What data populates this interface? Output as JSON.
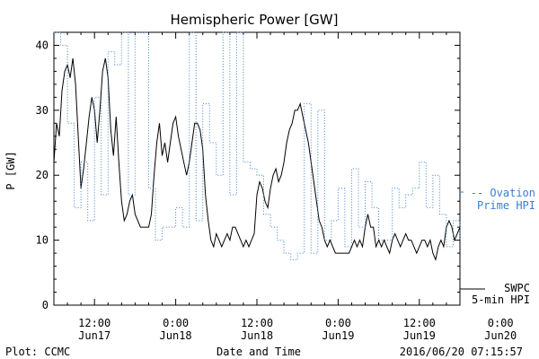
{
  "chart_data": {
    "type": "line",
    "title": "Hemispheric Power [GW]",
    "ylabel": "P [GW]",
    "xlabel": "Date and Time",
    "ylim": [
      0,
      42
    ],
    "yticks": [
      0,
      10,
      20,
      30,
      40
    ],
    "xlim": [
      6,
      66
    ],
    "xticks": [
      {
        "x": 12,
        "top": "12:00",
        "bottom": "Jun17"
      },
      {
        "x": 24,
        "top": "0:00",
        "bottom": "Jun18"
      },
      {
        "x": 36,
        "top": "12:00",
        "bottom": "Jun18"
      },
      {
        "x": 48,
        "top": "0:00",
        "bottom": "Jun19"
      },
      {
        "x": 60,
        "top": "12:00",
        "bottom": "Jun19"
      },
      {
        "x": 72,
        "top": "0:00",
        "bottom": "Jun20"
      }
    ],
    "series": [
      {
        "name": "SWPC 5-min HPI",
        "color": "#000000",
        "style": "solid",
        "x": [
          6.0,
          6.4,
          6.8,
          7.2,
          7.6,
          8.0,
          8.4,
          8.8,
          9.2,
          9.6,
          10.0,
          10.4,
          10.8,
          11.2,
          11.6,
          12.0,
          12.4,
          12.8,
          13.2,
          13.6,
          14.0,
          14.4,
          14.8,
          15.2,
          15.6,
          16.0,
          16.4,
          16.8,
          17.2,
          17.6,
          18.0,
          18.4,
          18.8,
          19.2,
          19.6,
          20.0,
          20.4,
          20.8,
          21.2,
          21.6,
          22.0,
          22.4,
          22.8,
          23.2,
          23.6,
          24.0,
          24.4,
          24.8,
          25.2,
          25.6,
          26.0,
          26.4,
          26.8,
          27.2,
          27.6,
          28.0,
          28.4,
          28.8,
          29.2,
          29.6,
          30.0,
          30.4,
          30.8,
          31.2,
          31.6,
          32.0,
          32.4,
          32.8,
          33.2,
          33.6,
          34.0,
          34.4,
          34.8,
          35.2,
          35.6,
          36.0,
          36.4,
          36.8,
          37.2,
          37.6,
          38.0,
          38.4,
          38.8,
          39.2,
          39.6,
          40.0,
          40.4,
          40.8,
          41.2,
          41.6,
          42.0,
          42.4,
          42.8,
          43.2,
          43.6,
          44.0,
          44.4,
          44.8,
          45.2,
          45.6,
          46.0,
          46.4,
          46.8,
          47.2,
          47.6,
          48.0,
          48.4,
          48.8,
          49.2,
          49.6,
          50.0,
          50.4,
          50.8,
          51.2,
          51.6,
          52.0,
          52.4,
          52.8,
          53.2,
          53.6,
          54.0,
          54.4,
          54.8,
          55.2,
          55.6,
          56.0,
          56.4,
          56.8,
          57.2,
          57.6,
          58.0,
          58.4,
          58.8,
          59.2,
          59.6,
          60.0,
          60.4,
          60.8,
          61.2,
          61.6,
          62.0,
          62.4,
          62.8,
          63.2,
          63.6,
          64.0,
          64.4,
          64.8,
          65.2,
          65.6,
          66.0
        ],
        "y": [
          22,
          28,
          26,
          33,
          36,
          37,
          35,
          38,
          34,
          26,
          18,
          21,
          25,
          29,
          32,
          30,
          25,
          30,
          36,
          38,
          35,
          27,
          23,
          29,
          22,
          16,
          13,
          14,
          16,
          17,
          14,
          13,
          12,
          12,
          12,
          12,
          14,
          20,
          25,
          28,
          23,
          25,
          22,
          25,
          28,
          29,
          26,
          24,
          22,
          20,
          22,
          25,
          28,
          28,
          27,
          24,
          17,
          13,
          10,
          9,
          11,
          10,
          9,
          10,
          11,
          10,
          12,
          12,
          11,
          10,
          9,
          10,
          9,
          10,
          11,
          17,
          19,
          18,
          16,
          15,
          18,
          20,
          21,
          19,
          20,
          22,
          25,
          27,
          28,
          30,
          30,
          31,
          29,
          27,
          25,
          22,
          19,
          16,
          13,
          12,
          10,
          9,
          10,
          9,
          8,
          8,
          8,
          8,
          8,
          8,
          9,
          10,
          9,
          10,
          9,
          12,
          14,
          12,
          12,
          9,
          10,
          9,
          10,
          9,
          8,
          10,
          11,
          10,
          9,
          10,
          11,
          10,
          10,
          9,
          8,
          9,
          10,
          10,
          9,
          10,
          8,
          7,
          9,
          10,
          9,
          12,
          13,
          12,
          10,
          11,
          12
        ],
        "comment_ignore": ""
      },
      {
        "name": "Ovation Prime HPI",
        "color": "#3a7fd0",
        "style": "dotted",
        "x": [
          6,
          7,
          8,
          9,
          10,
          11,
          12,
          13,
          14,
          15,
          16,
          17,
          18,
          19,
          20,
          21,
          22,
          23,
          24,
          25,
          26,
          27,
          28,
          29,
          30,
          31,
          32,
          33,
          34,
          35,
          36,
          37,
          38,
          39,
          40,
          41,
          42,
          43,
          44,
          45,
          46,
          47,
          48,
          49,
          50,
          51,
          52,
          53,
          54,
          55,
          56,
          57,
          58,
          59,
          60,
          61,
          62,
          63,
          64,
          65,
          66
        ],
        "y": [
          42,
          40,
          28,
          15,
          22,
          13,
          32,
          17,
          39,
          37,
          42,
          17,
          42,
          42,
          18,
          10,
          12,
          12,
          15,
          12,
          42,
          13,
          31,
          25,
          20,
          42,
          17,
          42,
          22,
          21,
          20,
          14,
          12,
          10,
          8,
          7,
          8,
          31,
          8,
          30,
          10,
          13,
          18,
          9,
          21,
          12,
          19,
          15,
          10,
          10,
          18,
          15,
          17,
          18,
          22,
          15,
          20,
          14,
          9,
          13,
          10
        ]
      }
    ],
    "legend": [
      {
        "lines": [
          "-- Ovation",
          "Prime HPI"
        ],
        "color": "#3a7fd0"
      },
      {
        "lines": [
          "SWPC",
          "5-min HPI"
        ],
        "color": "#000000"
      }
    ],
    "legend_position": "right",
    "grid": false
  },
  "footer": {
    "left": "Plot: CCMC",
    "center": "Date and Time",
    "right": "2016/06/20 07:15:57"
  }
}
